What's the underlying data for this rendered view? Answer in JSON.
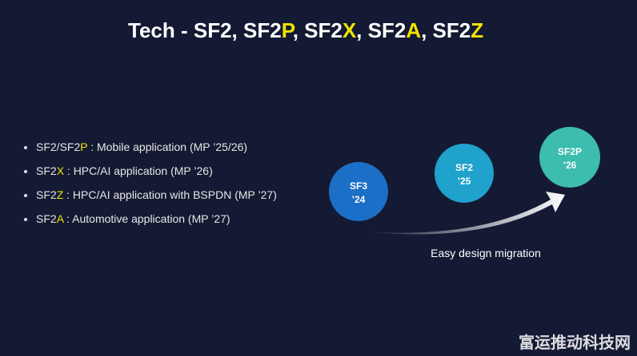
{
  "title": {
    "segments": [
      {
        "text": "Tech - SF2, SF2",
        "color": "#ffffff"
      },
      {
        "text": "P",
        "color": "#f2e200"
      },
      {
        "text": ", SF2",
        "color": "#ffffff"
      },
      {
        "text": "X",
        "color": "#f2e200"
      },
      {
        "text": ", SF2",
        "color": "#ffffff"
      },
      {
        "text": "A",
        "color": "#f2e200"
      },
      {
        "text": ", SF2",
        "color": "#ffffff"
      },
      {
        "text": "Z",
        "color": "#f2e200"
      }
    ]
  },
  "bullets": [
    {
      "segments": [
        {
          "text": "SF2/SF2",
          "color": "#e6e6e6"
        },
        {
          "text": "P",
          "color": "#f2e200"
        },
        {
          "text": " : Mobile application (MP ’25/26)",
          "color": "#e6e6e6"
        }
      ]
    },
    {
      "segments": [
        {
          "text": "SF2",
          "color": "#e6e6e6"
        },
        {
          "text": "X",
          "color": "#f2e200"
        },
        {
          "text": " : HPC/AI application (MP ’26)",
          "color": "#e6e6e6"
        }
      ]
    },
    {
      "segments": [
        {
          "text": "SF2",
          "color": "#e6e6e6"
        },
        {
          "text": "Z",
          "color": "#f2e200"
        },
        {
          "text": " : HPC/AI application with BSPDN (MP ’27)",
          "color": "#e6e6e6"
        }
      ]
    },
    {
      "segments": [
        {
          "text": "SF2",
          "color": "#e6e6e6"
        },
        {
          "text": "A",
          "color": "#f2e200"
        },
        {
          "text": " : Automotive application (MP ’27)",
          "color": "#e6e6e6"
        }
      ]
    }
  ],
  "nodes": [
    {
      "label": "SF3",
      "year": "’24",
      "color": "#1c6fc6"
    },
    {
      "label": "SF2",
      "year": "’25",
      "color": "#1fa2cb"
    },
    {
      "label": "SF2P",
      "year": "’26",
      "color": "#3cbdae"
    }
  ],
  "caption": "Easy design migration",
  "watermark": "富运推动科技网"
}
